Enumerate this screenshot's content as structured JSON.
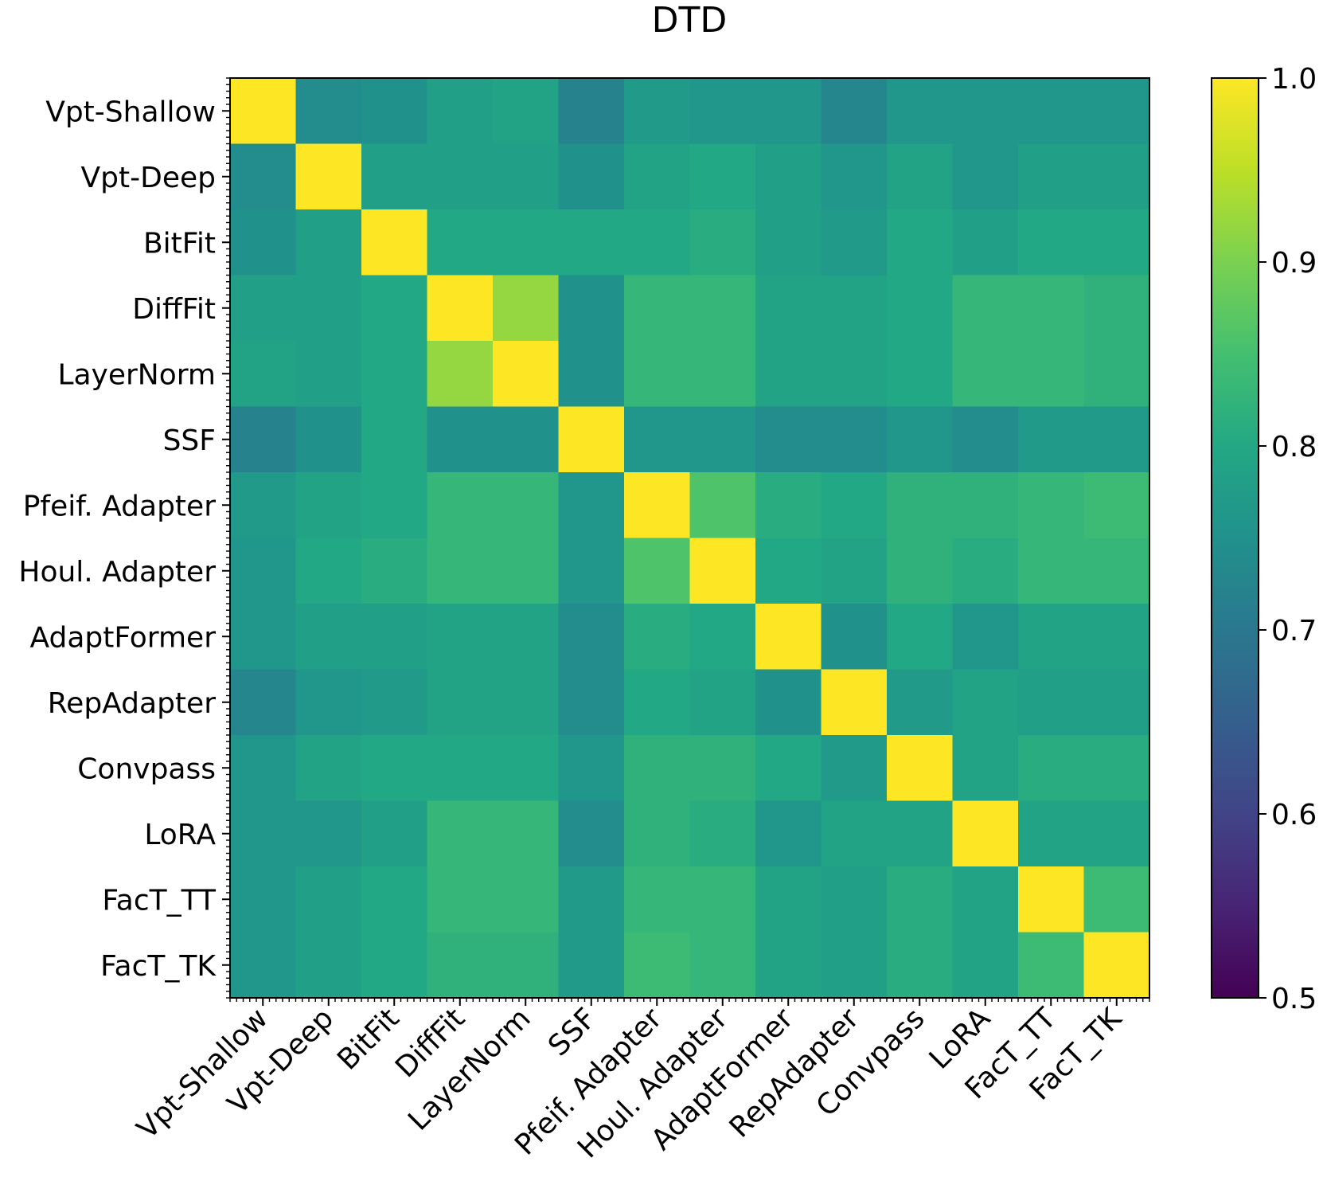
{
  "chart_data": {
    "type": "heatmap",
    "title": "DTD",
    "xlabel": "",
    "ylabel": "",
    "labels": [
      "Vpt-Shallow",
      "Vpt-Deep",
      "BitFit",
      "DiffFit",
      "LayerNorm",
      "SSF",
      "Pfeif. Adapter",
      "Houl. Adapter",
      "AdaptFormer",
      "RepAdapter",
      "Convpass",
      "LoRA",
      "FacT_TT",
      "FacT_TK"
    ],
    "values": [
      [
        1.0,
        0.74,
        0.75,
        0.78,
        0.79,
        0.72,
        0.77,
        0.76,
        0.76,
        0.73,
        0.76,
        0.76,
        0.76,
        0.76
      ],
      [
        0.74,
        1.0,
        0.78,
        0.78,
        0.78,
        0.75,
        0.79,
        0.8,
        0.78,
        0.76,
        0.79,
        0.76,
        0.78,
        0.78
      ],
      [
        0.75,
        0.78,
        1.0,
        0.8,
        0.8,
        0.8,
        0.8,
        0.81,
        0.78,
        0.77,
        0.8,
        0.78,
        0.8,
        0.8
      ],
      [
        0.78,
        0.78,
        0.8,
        1.0,
        0.92,
        0.75,
        0.83,
        0.83,
        0.79,
        0.79,
        0.8,
        0.83,
        0.83,
        0.82
      ],
      [
        0.79,
        0.78,
        0.8,
        0.92,
        1.0,
        0.75,
        0.83,
        0.83,
        0.79,
        0.79,
        0.8,
        0.83,
        0.83,
        0.82
      ],
      [
        0.72,
        0.75,
        0.8,
        0.75,
        0.75,
        1.0,
        0.76,
        0.76,
        0.74,
        0.74,
        0.76,
        0.74,
        0.77,
        0.77
      ],
      [
        0.77,
        0.79,
        0.8,
        0.83,
        0.83,
        0.76,
        1.0,
        0.86,
        0.81,
        0.8,
        0.82,
        0.82,
        0.83,
        0.84
      ],
      [
        0.76,
        0.8,
        0.81,
        0.83,
        0.83,
        0.76,
        0.86,
        1.0,
        0.8,
        0.79,
        0.82,
        0.81,
        0.83,
        0.83
      ],
      [
        0.76,
        0.78,
        0.78,
        0.79,
        0.79,
        0.74,
        0.81,
        0.8,
        1.0,
        0.75,
        0.8,
        0.76,
        0.79,
        0.79
      ],
      [
        0.73,
        0.76,
        0.77,
        0.79,
        0.79,
        0.74,
        0.8,
        0.79,
        0.75,
        1.0,
        0.77,
        0.79,
        0.78,
        0.78
      ],
      [
        0.76,
        0.79,
        0.8,
        0.8,
        0.8,
        0.76,
        0.82,
        0.82,
        0.8,
        0.77,
        1.0,
        0.79,
        0.81,
        0.81
      ],
      [
        0.76,
        0.76,
        0.78,
        0.83,
        0.83,
        0.74,
        0.82,
        0.81,
        0.76,
        0.79,
        0.79,
        1.0,
        0.79,
        0.79
      ],
      [
        0.76,
        0.78,
        0.8,
        0.83,
        0.83,
        0.77,
        0.83,
        0.83,
        0.79,
        0.78,
        0.81,
        0.79,
        1.0,
        0.84
      ],
      [
        0.76,
        0.78,
        0.8,
        0.82,
        0.82,
        0.77,
        0.84,
        0.83,
        0.79,
        0.78,
        0.81,
        0.79,
        0.84,
        1.0
      ]
    ],
    "colormap": "viridis",
    "vmin": 0.5,
    "vmax": 1.0,
    "colorbar_ticks": [
      "0.5",
      "0.6",
      "0.7",
      "0.8",
      "0.9",
      "1.0"
    ],
    "colorbar_tick_values": [
      0.5,
      0.6,
      0.7,
      0.8,
      0.9,
      1.0
    ]
  }
}
